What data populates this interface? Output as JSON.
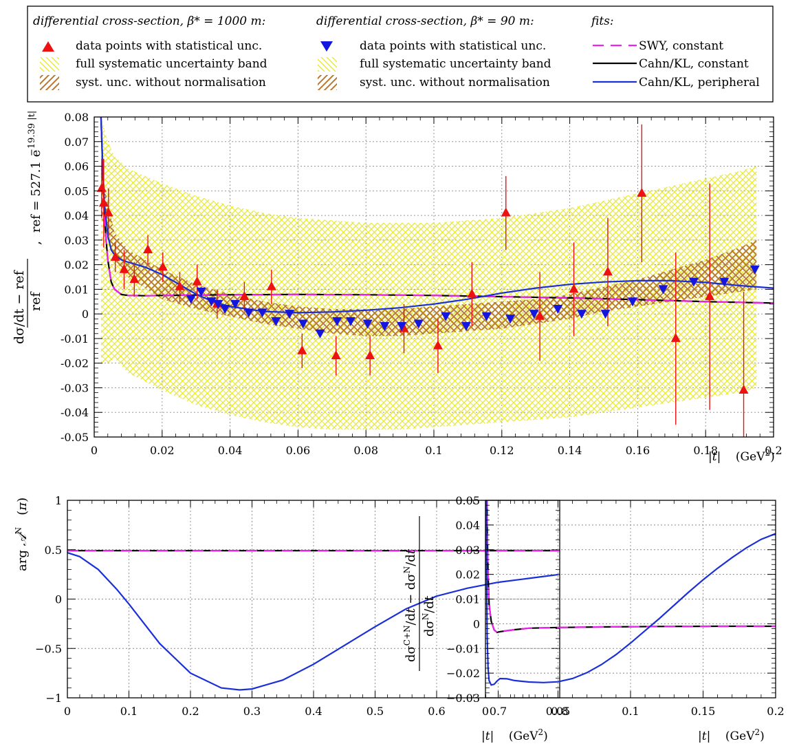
{
  "legend": {
    "col1": {
      "header": "differential cross-section, β* = 1000 m:",
      "items": [
        "data points with statistical unc.",
        "full systematic uncertainty band",
        "syst. unc. without normalisation"
      ]
    },
    "col2": {
      "header": "differential cross-section, β* = 90 m:",
      "items": [
        "data points with statistical unc.",
        "full systematic uncertainty band",
        "syst. unc. without normalisation"
      ]
    },
    "col3": {
      "header": "fits:",
      "items": [
        "SWY, constant",
        "Cahn/KL, constant",
        "Cahn/KL, peripheral"
      ]
    }
  },
  "colors": {
    "b1000_points": "#ee1111",
    "b90_points": "#1515e0",
    "full_band": "#e8e83a",
    "norm_band": "#b87830",
    "swy_constant": "#ee22ee",
    "cahn_constant": "#000000",
    "cahn_peripheral": "#1a2fd8"
  },
  "chart_data": [
    {
      "type": "scatter",
      "id": "main",
      "xlabel": "|t|   (GeV²)",
      "ylabel_left": "dσ/dt − ref / ref",
      "ylabel_right": "ref = 527.1 e^−19.39 |t|",
      "xlim": [
        0,
        0.2
      ],
      "ylim": [
        -0.05,
        0.08
      ],
      "xticks": [
        "0",
        "0.02",
        "0.04",
        "0.06",
        "0.08",
        "0.1",
        "0.12",
        "0.14",
        "0.16",
        "0.18",
        "0.2"
      ],
      "yticks": [
        "-0.05",
        "-0.04",
        "-0.03",
        "-0.02",
        "-0.01",
        "0",
        "0.01",
        "0.02",
        "0.03",
        "0.04",
        "0.05",
        "0.06",
        "0.07",
        "0.08"
      ],
      "grid": true,
      "series": [
        {
          "name": "β* = 1000 m",
          "x": [
            0.0022,
            0.0028,
            0.0042,
            0.0062,
            0.0088,
            0.0118,
            0.0158,
            0.0202,
            0.0252,
            0.0303,
            0.0362,
            0.0442,
            0.0522,
            0.0612,
            0.0712,
            0.0812,
            0.0912,
            0.1012,
            0.1112,
            0.1212,
            0.1312,
            0.1412,
            0.1512,
            0.1612,
            0.1712,
            0.1812,
            0.1912
          ],
          "y": [
            0.051,
            0.045,
            0.041,
            0.023,
            0.018,
            0.014,
            0.026,
            0.019,
            0.011,
            0.013,
            0.004,
            0.007,
            0.011,
            -0.015,
            -0.017,
            -0.017,
            -0.006,
            -0.013,
            0.008,
            0.041,
            -0.001,
            0.01,
            0.017,
            0.049,
            -0.01,
            0.007,
            -0.031
          ],
          "yerr": [
            0.012,
            0.018,
            0.01,
            0.006,
            0.008,
            0.007,
            0.006,
            0.006,
            0.006,
            0.007,
            0.006,
            0.006,
            0.007,
            0.007,
            0.008,
            0.008,
            0.01,
            0.011,
            0.013,
            0.015,
            0.018,
            0.019,
            0.022,
            0.028,
            0.035,
            0.046,
            0.04
          ]
        },
        {
          "name": "β* = 90 m",
          "x": [
            0.0285,
            0.0315,
            0.0345,
            0.0365,
            0.0385,
            0.0415,
            0.0455,
            0.0495,
            0.0535,
            0.0575,
            0.0615,
            0.0665,
            0.0715,
            0.0755,
            0.0805,
            0.0855,
            0.0905,
            0.0955,
            0.1035,
            0.1095,
            0.1155,
            0.1225,
            0.1295,
            0.1365,
            0.1435,
            0.1505,
            0.1585,
            0.1675,
            0.1765,
            0.1855,
            0.1945
          ],
          "y": [
            0.006,
            0.009,
            0.005,
            0.004,
            0.002,
            0.004,
            0.0005,
            0.0005,
            -0.003,
            0,
            -0.004,
            -0.008,
            -0.003,
            -0.003,
            -0.004,
            -0.005,
            -0.005,
            -0.004,
            -0.001,
            -0.005,
            -0.001,
            -0.002,
            0,
            0.002,
            0,
            0,
            0.005,
            0.01,
            0.013,
            0.013,
            0.018
          ]
        }
      ],
      "full_band": {
        "x": [
          0.002,
          0.004,
          0.006,
          0.01,
          0.02,
          0.03,
          0.04,
          0.05,
          0.06,
          0.07,
          0.08,
          0.09,
          0.1,
          0.11,
          0.12,
          0.13,
          0.14,
          0.15,
          0.16,
          0.17,
          0.18,
          0.19,
          0.195
        ],
        "upper": [
          0.08,
          0.07,
          0.064,
          0.059,
          0.053,
          0.048,
          0.044,
          0.041,
          0.039,
          0.038,
          0.037,
          0.037,
          0.037,
          0.038,
          0.039,
          0.041,
          0.043,
          0.046,
          0.049,
          0.052,
          0.055,
          0.058,
          0.06
        ],
        "lower": [
          -0.02,
          -0.02,
          -0.018,
          -0.024,
          -0.031,
          -0.037,
          -0.041,
          -0.044,
          -0.046,
          -0.047,
          -0.047,
          -0.047,
          -0.046,
          -0.045,
          -0.044,
          -0.043,
          -0.042,
          -0.04,
          -0.038,
          -0.036,
          -0.034,
          -0.032,
          -0.03
        ]
      },
      "norm_band": {
        "x": [
          0.002,
          0.004,
          0.006,
          0.01,
          0.02,
          0.03,
          0.04,
          0.05,
          0.06,
          0.07,
          0.08,
          0.09,
          0.1,
          0.11,
          0.12,
          0.13,
          0.14,
          0.15,
          0.16,
          0.17,
          0.18,
          0.19,
          0.195
        ],
        "upper": [
          0.06,
          0.045,
          0.033,
          0.026,
          0.018,
          0.012,
          0.008,
          0.005,
          0.003,
          0.002,
          0.002,
          0.002,
          0.003,
          0.004,
          0.005,
          0.006,
          0.008,
          0.011,
          0.014,
          0.018,
          0.022,
          0.027,
          0.03
        ],
        "lower": [
          0.04,
          0.03,
          0.022,
          0.015,
          0.006,
          0.002,
          -0.001,
          -0.004,
          -0.006,
          -0.008,
          -0.009,
          -0.009,
          -0.008,
          -0.007,
          -0.006,
          -0.004,
          -0.002,
          0.001,
          0.003,
          0.005,
          0.007,
          0.009,
          0.01
        ]
      },
      "fits": [
        {
          "name": "SWY, constant",
          "x": [
            0.0015,
            0.002,
            0.0025,
            0.003,
            0.0035,
            0.004,
            0.005,
            0.006,
            0.008,
            0.01,
            0.015,
            0.02,
            0.04,
            0.06,
            0.08,
            0.1,
            0.12,
            0.14,
            0.16,
            0.18,
            0.2
          ],
          "y": [
            0.12,
            0.08,
            0.06,
            0.04,
            0.03,
            0.022,
            0.013,
            0.01,
            0.0079,
            0.0075,
            0.0074,
            0.0075,
            0.0078,
            0.0079,
            0.0078,
            0.0075,
            0.007,
            0.0065,
            0.0058,
            0.005,
            0.0044
          ]
        },
        {
          "name": "Cahn/KL, constant",
          "x": [
            0.0015,
            0.002,
            0.0025,
            0.003,
            0.0035,
            0.004,
            0.005,
            0.006,
            0.008,
            0.01,
            0.015,
            0.02,
            0.04,
            0.06,
            0.08,
            0.1,
            0.12,
            0.14,
            0.16,
            0.18,
            0.2
          ],
          "y": [
            0.12,
            0.08,
            0.06,
            0.04,
            0.03,
            0.022,
            0.013,
            0.01,
            0.0079,
            0.0075,
            0.0074,
            0.0075,
            0.0078,
            0.0079,
            0.0078,
            0.0075,
            0.007,
            0.0065,
            0.0058,
            0.005,
            0.0044
          ]
        },
        {
          "name": "Cahn/KL, peripheral",
          "x": [
            0.0015,
            0.002,
            0.0025,
            0.003,
            0.004,
            0.005,
            0.006,
            0.008,
            0.01,
            0.015,
            0.02,
            0.025,
            0.03,
            0.035,
            0.04,
            0.05,
            0.06,
            0.07,
            0.08,
            0.09,
            0.1,
            0.11,
            0.12,
            0.13,
            0.14,
            0.15,
            0.16,
            0.17,
            0.18,
            0.19,
            0.2
          ],
          "y": [
            0.12,
            0.08,
            0.06,
            0.045,
            0.032,
            0.026,
            0.024,
            0.022,
            0.021,
            0.019,
            0.016,
            0.012,
            0.008,
            0.005,
            0.003,
            0.001,
            0.0005,
            0.0008,
            0.0015,
            0.0025,
            0.004,
            0.006,
            0.0085,
            0.0105,
            0.012,
            0.013,
            0.0135,
            0.0135,
            0.0128,
            0.0115,
            0.0105
          ]
        }
      ]
    },
    {
      "type": "line",
      "id": "phase",
      "xlabel": "|t|   (GeV²)",
      "ylabel": "arg 𝒜ᴺ   (π)",
      "xlim": [
        0,
        0.8
      ],
      "ylim": [
        -1,
        1
      ],
      "xticks": [
        "0",
        "0.1",
        "0.2",
        "0.3",
        "0.4",
        "0.5",
        "0.6",
        "0.7",
        "0.8"
      ],
      "yticks": [
        "−1",
        "−0.5",
        "0",
        "0.5",
        "1"
      ],
      "grid": true,
      "series": [
        {
          "name": "SWY, constant",
          "x": [
            0,
            0.8
          ],
          "y": [
            0.49,
            0.49
          ]
        },
        {
          "name": "Cahn/KL, constant",
          "x": [
            0,
            0.8
          ],
          "y": [
            0.49,
            0.49
          ]
        },
        {
          "name": "Cahn/KL, peripheral",
          "x": [
            0,
            0.02,
            0.05,
            0.08,
            0.1,
            0.15,
            0.2,
            0.25,
            0.28,
            0.3,
            0.35,
            0.4,
            0.45,
            0.5,
            0.55,
            0.6,
            0.65,
            0.7,
            0.75,
            0.8
          ],
          "y": [
            0.47,
            0.43,
            0.3,
            0.1,
            -0.05,
            -0.45,
            -0.75,
            -0.9,
            -0.92,
            -0.91,
            -0.82,
            -0.66,
            -0.47,
            -0.28,
            -0.1,
            0.03,
            0.11,
            0.17,
            0.21,
            0.25
          ]
        }
      ]
    },
    {
      "type": "line",
      "id": "interference",
      "xlabel": "|t|   (GeV²)",
      "ylabel": "dσ^(C+N)/dt − dσ^N/dt / dσ^N/dt",
      "xlim": [
        0,
        0.2
      ],
      "ylim": [
        -0.03,
        0.05
      ],
      "xticks": [
        "0",
        "0.05",
        "0.1",
        "0.15",
        "0.2"
      ],
      "yticks": [
        "−0.03",
        "−0.02",
        "−0.01",
        "0",
        "0.01",
        "0.02",
        "0.03",
        "0.04",
        "0.05"
      ],
      "grid": true,
      "series": [
        {
          "name": "SWY, constant",
          "x": [
            0.0008,
            0.0012,
            0.0018,
            0.0025,
            0.004,
            0.006,
            0.008,
            0.01,
            0.015,
            0.02,
            0.03,
            0.05,
            0.08,
            0.12,
            0.16,
            0.2
          ],
          "y": [
            0.08,
            0.04,
            0.02,
            0.008,
            0.001,
            -0.0025,
            -0.0035,
            -0.0032,
            -0.0028,
            -0.0024,
            -0.0018,
            -0.0015,
            -0.0013,
            -0.0011,
            -0.001,
            -0.001
          ]
        },
        {
          "name": "Cahn/KL, constant",
          "x": [
            0.0008,
            0.0012,
            0.0018,
            0.0025,
            0.004,
            0.006,
            0.008,
            0.01,
            0.015,
            0.02,
            0.03,
            0.05,
            0.08,
            0.12,
            0.16,
            0.2
          ],
          "y": [
            0.08,
            0.04,
            0.02,
            0.008,
            0.001,
            -0.0025,
            -0.0035,
            -0.0032,
            -0.0028,
            -0.0024,
            -0.0018,
            -0.0015,
            -0.0013,
            -0.0011,
            -0.001,
            -0.001
          ]
        },
        {
          "name": "Cahn/KL, peripheral",
          "x": [
            0.0005,
            0.0008,
            0.0012,
            0.0018,
            0.0025,
            0.004,
            0.006,
            0.008,
            0.01,
            0.015,
            0.02,
            0.03,
            0.04,
            0.05,
            0.06,
            0.07,
            0.08,
            0.09,
            0.1,
            0.11,
            0.12,
            0.13,
            0.14,
            0.15,
            0.16,
            0.17,
            0.18,
            0.19,
            0.2
          ],
          "y": [
            0.08,
            0.02,
            -0.005,
            -0.018,
            -0.023,
            -0.0248,
            -0.0245,
            -0.0232,
            -0.0222,
            -0.0223,
            -0.023,
            -0.0236,
            -0.0238,
            -0.0235,
            -0.0222,
            -0.0198,
            -0.0165,
            -0.0125,
            -0.0078,
            -0.0028,
            0.0022,
            0.0075,
            0.0128,
            0.0178,
            0.0225,
            0.0268,
            0.0308,
            0.0342,
            0.0365
          ]
        }
      ]
    }
  ]
}
